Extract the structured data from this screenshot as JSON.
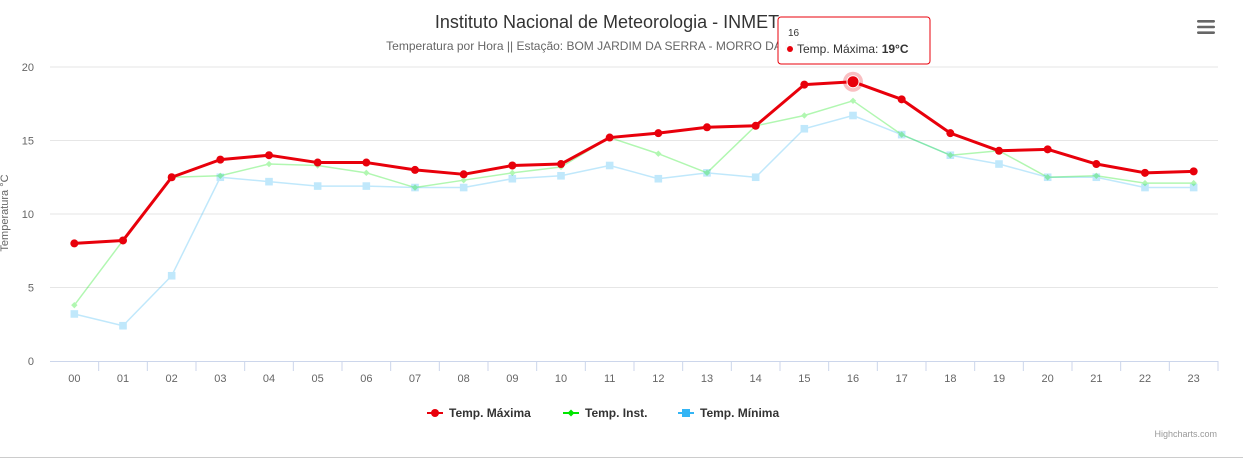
{
  "title": "Instituto Nacional de Meteorologia - INMET",
  "subtitle": "Temperatura por Hora || Estação: BOM JARDIM DA SERRA - MORRO DA IGREJA",
  "credits": "Highcharts.com",
  "menu_icon": "hamburger-menu-icon",
  "tooltip": {
    "header": "16",
    "series_label": "Temp. Máxima",
    "separator": ": ",
    "value": "19°C",
    "color": "#e8000b"
  },
  "chart_data": {
    "type": "line",
    "title": "Instituto Nacional de Meteorologia - INMET",
    "subtitle": "Temperatura por Hora || Estação: BOM JARDIM DA SERRA - MORRO DA IGREJA",
    "xlabel": "",
    "ylabel": "Temperatura °C",
    "categories": [
      "00",
      "01",
      "02",
      "03",
      "04",
      "05",
      "06",
      "07",
      "08",
      "09",
      "10",
      "11",
      "12",
      "13",
      "14",
      "15",
      "16",
      "17",
      "18",
      "19",
      "20",
      "21",
      "22",
      "23"
    ],
    "ylim": [
      0,
      20
    ],
    "yticks": [
      0,
      5,
      10,
      15,
      20
    ],
    "grid": true,
    "legend_position": "bottom-center",
    "series": [
      {
        "name": "Temp. Máxima",
        "color": "#e8000b",
        "marker": "circle",
        "values": [
          8.0,
          8.2,
          12.5,
          13.7,
          14.0,
          13.5,
          13.5,
          13.0,
          12.7,
          13.3,
          13.4,
          15.2,
          15.5,
          15.9,
          16.0,
          18.8,
          19.0,
          17.8,
          15.5,
          14.3,
          14.4,
          13.4,
          12.8,
          12.9
        ]
      },
      {
        "name": "Temp. Inst.",
        "color": "#00e600",
        "marker": "diamond",
        "values": [
          3.8,
          8.2,
          12.5,
          12.6,
          13.4,
          13.3,
          12.8,
          11.8,
          12.3,
          12.8,
          13.2,
          15.2,
          14.1,
          12.8,
          16.0,
          16.7,
          17.7,
          15.4,
          14.0,
          14.3,
          12.5,
          12.6,
          12.1,
          12.1
        ]
      },
      {
        "name": "Temp. Mínima",
        "color": "#33b5f5",
        "marker": "square",
        "values": [
          3.2,
          2.4,
          5.8,
          12.5,
          12.2,
          11.9,
          11.9,
          11.8,
          11.8,
          12.4,
          12.6,
          13.3,
          12.4,
          12.8,
          12.5,
          15.8,
          16.7,
          15.4,
          14.0,
          13.4,
          12.5,
          12.5,
          11.8,
          11.8
        ]
      }
    ],
    "active_point": {
      "series": "Temp. Máxima",
      "category": "16"
    }
  }
}
